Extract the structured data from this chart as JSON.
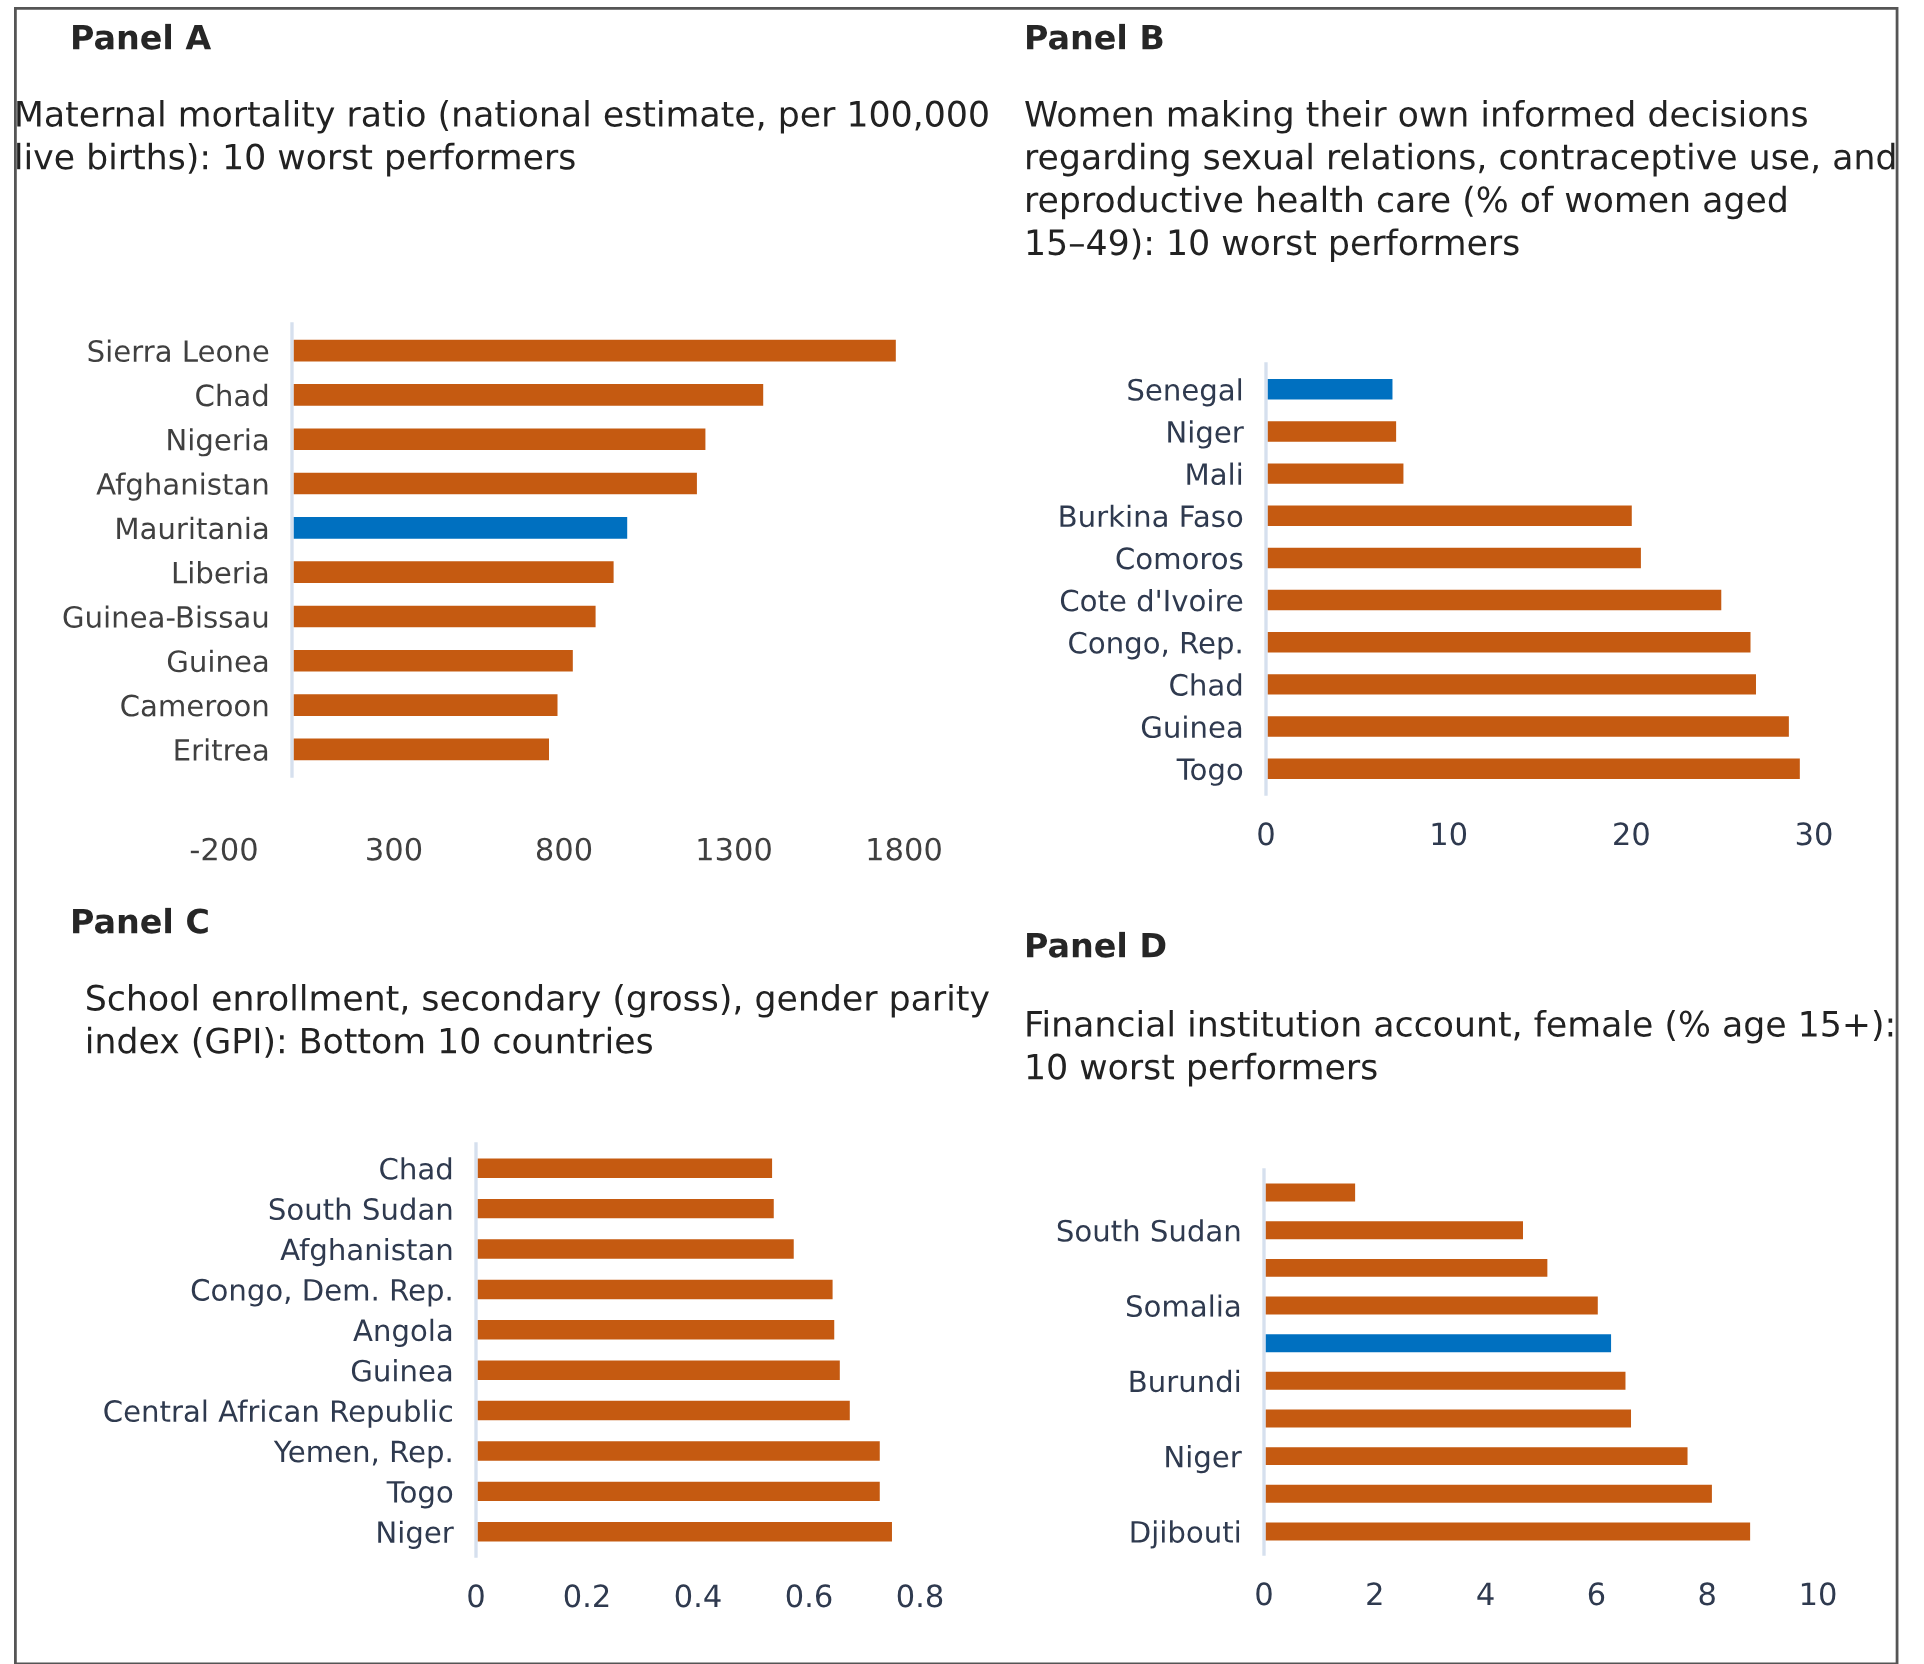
{
  "chart_data": [
    {
      "type": "bar",
      "orientation": "horizontal",
      "title": "Panel A",
      "subtitle": "Maternal mortality ratio (national estimate, per 100,000 live births): 10 worst performers",
      "categories": [
        "Sierra Leone",
        "Chad",
        "Nigeria",
        "Afghanistan",
        "Mauritania",
        "Liberia",
        "Guinea-Bissau",
        "Guinea",
        "Cameroon",
        "Eritrea"
      ],
      "values": [
        1780,
        1390,
        1220,
        1195,
        990,
        950,
        897,
        830,
        785,
        760
      ],
      "colors": [
        "#c55a11",
        "#c55a11",
        "#c55a11",
        "#c55a11",
        "#0070c0",
        "#c55a11",
        "#c55a11",
        "#c55a11",
        "#c55a11",
        "#c55a11"
      ],
      "xlim": [
        -200,
        1800
      ],
      "xticks": [
        -200,
        300,
        800,
        1300,
        1800
      ]
    },
    {
      "type": "bar",
      "orientation": "horizontal",
      "title": "Panel B",
      "subtitle": "Women making their own informed decisions regarding sexual relations, contraceptive use, and reproductive health care (% of women aged 15–49): 10 worst performers",
      "categories": [
        "Senegal",
        "Niger",
        "Mali",
        "Burkina Faso",
        "Comoros",
        "Cote d'Ivoire",
        "Congo, Rep.",
        "Chad",
        "Guinea",
        "Togo"
      ],
      "values": [
        7.0,
        7.2,
        7.6,
        20.1,
        20.6,
        25.0,
        26.6,
        26.9,
        28.7,
        29.3
      ],
      "colors": [
        "#0070c0",
        "#c55a11",
        "#c55a11",
        "#c55a11",
        "#c55a11",
        "#c55a11",
        "#c55a11",
        "#c55a11",
        "#c55a11",
        "#c55a11"
      ],
      "xlim": [
        0,
        30
      ],
      "xticks": [
        0,
        10,
        20,
        30
      ]
    },
    {
      "type": "bar",
      "orientation": "horizontal",
      "title": "Panel C",
      "subtitle": "School enrollment, secondary (gross), gender parity index (GPI): Bottom 10 countries",
      "categories": [
        "Chad",
        "South Sudan",
        "Afghanistan",
        "Congo, Dem. Rep.",
        "Angola",
        "Guinea",
        "Central African Republic",
        "Yemen, Rep.",
        "Togo",
        "Niger"
      ],
      "values": [
        0.536,
        0.539,
        0.575,
        0.645,
        0.648,
        0.658,
        0.676,
        0.73,
        0.73,
        0.752
      ],
      "colors": [
        "#c55a11",
        "#c55a11",
        "#c55a11",
        "#c55a11",
        "#c55a11",
        "#c55a11",
        "#c55a11",
        "#c55a11",
        "#c55a11",
        "#c55a11"
      ],
      "xlim": [
        0,
        0.8
      ],
      "xticks": [
        0,
        0.2,
        0.4,
        0.6,
        0.8
      ]
    },
    {
      "type": "bar",
      "orientation": "horizontal",
      "title": "Panel D",
      "subtitle": "Financial institution account, female (% age 15+): 10 worst performers",
      "categories": [
        null,
        "South Sudan",
        null,
        "Somalia",
        null,
        "Burundi",
        null,
        "Niger",
        null,
        "Djibouti"
      ],
      "values": [
        1.67,
        4.7,
        5.14,
        6.05,
        6.29,
        6.55,
        6.65,
        7.67,
        8.11,
        8.8
      ],
      "colors": [
        "#c55a11",
        "#c55a11",
        "#c55a11",
        "#c55a11",
        "#0070c0",
        "#c55a11",
        "#c55a11",
        "#c55a11",
        "#c55a11",
        "#c55a11"
      ],
      "xlim": [
        0,
        10
      ],
      "xticks": [
        0,
        2,
        4,
        6,
        8,
        10
      ]
    }
  ]
}
